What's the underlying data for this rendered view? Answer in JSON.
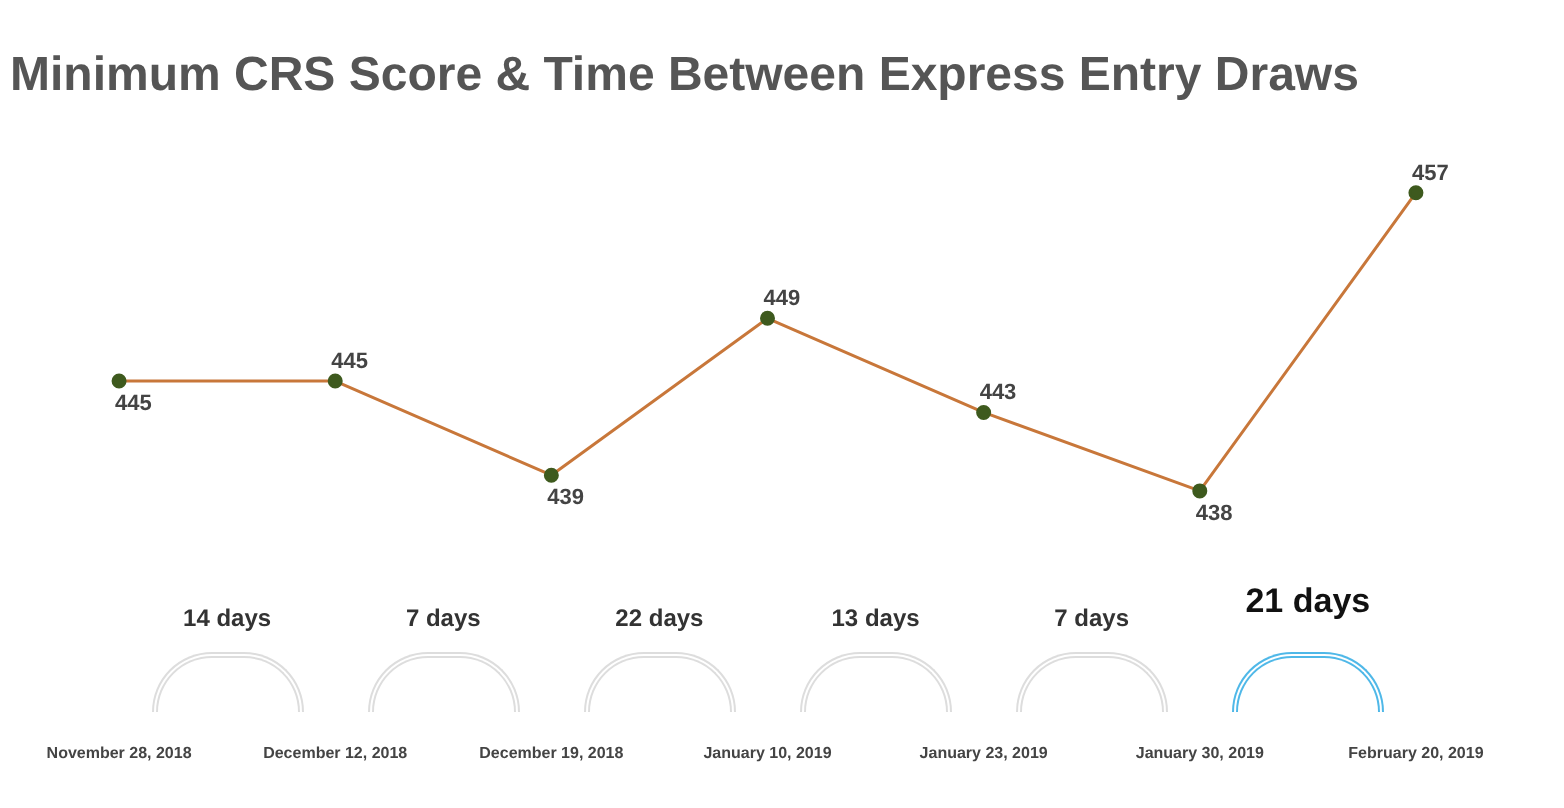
{
  "chart_data": {
    "type": "line",
    "title": "Minimum CRS Score & Time Between Express Entry Draws",
    "categories": [
      "November 28, 2018",
      "December 12, 2018",
      "December 19, 2018",
      "January 10, 2019",
      "January 23, 2019",
      "January 30, 2019",
      "February 20, 2019"
    ],
    "series": [
      {
        "color": "#c8773a",
        "values": [
          445,
          445,
          439,
          449,
          443,
          438,
          457
        ]
      }
    ],
    "data_labels": true,
    "marker": "circle",
    "grid": false,
    "legend": false,
    "tick_labels": "x",
    "annotations": [
      "14 days",
      "7 days",
      "22 days",
      "13 days",
      "7 days",
      "21 days"
    ]
  }
}
